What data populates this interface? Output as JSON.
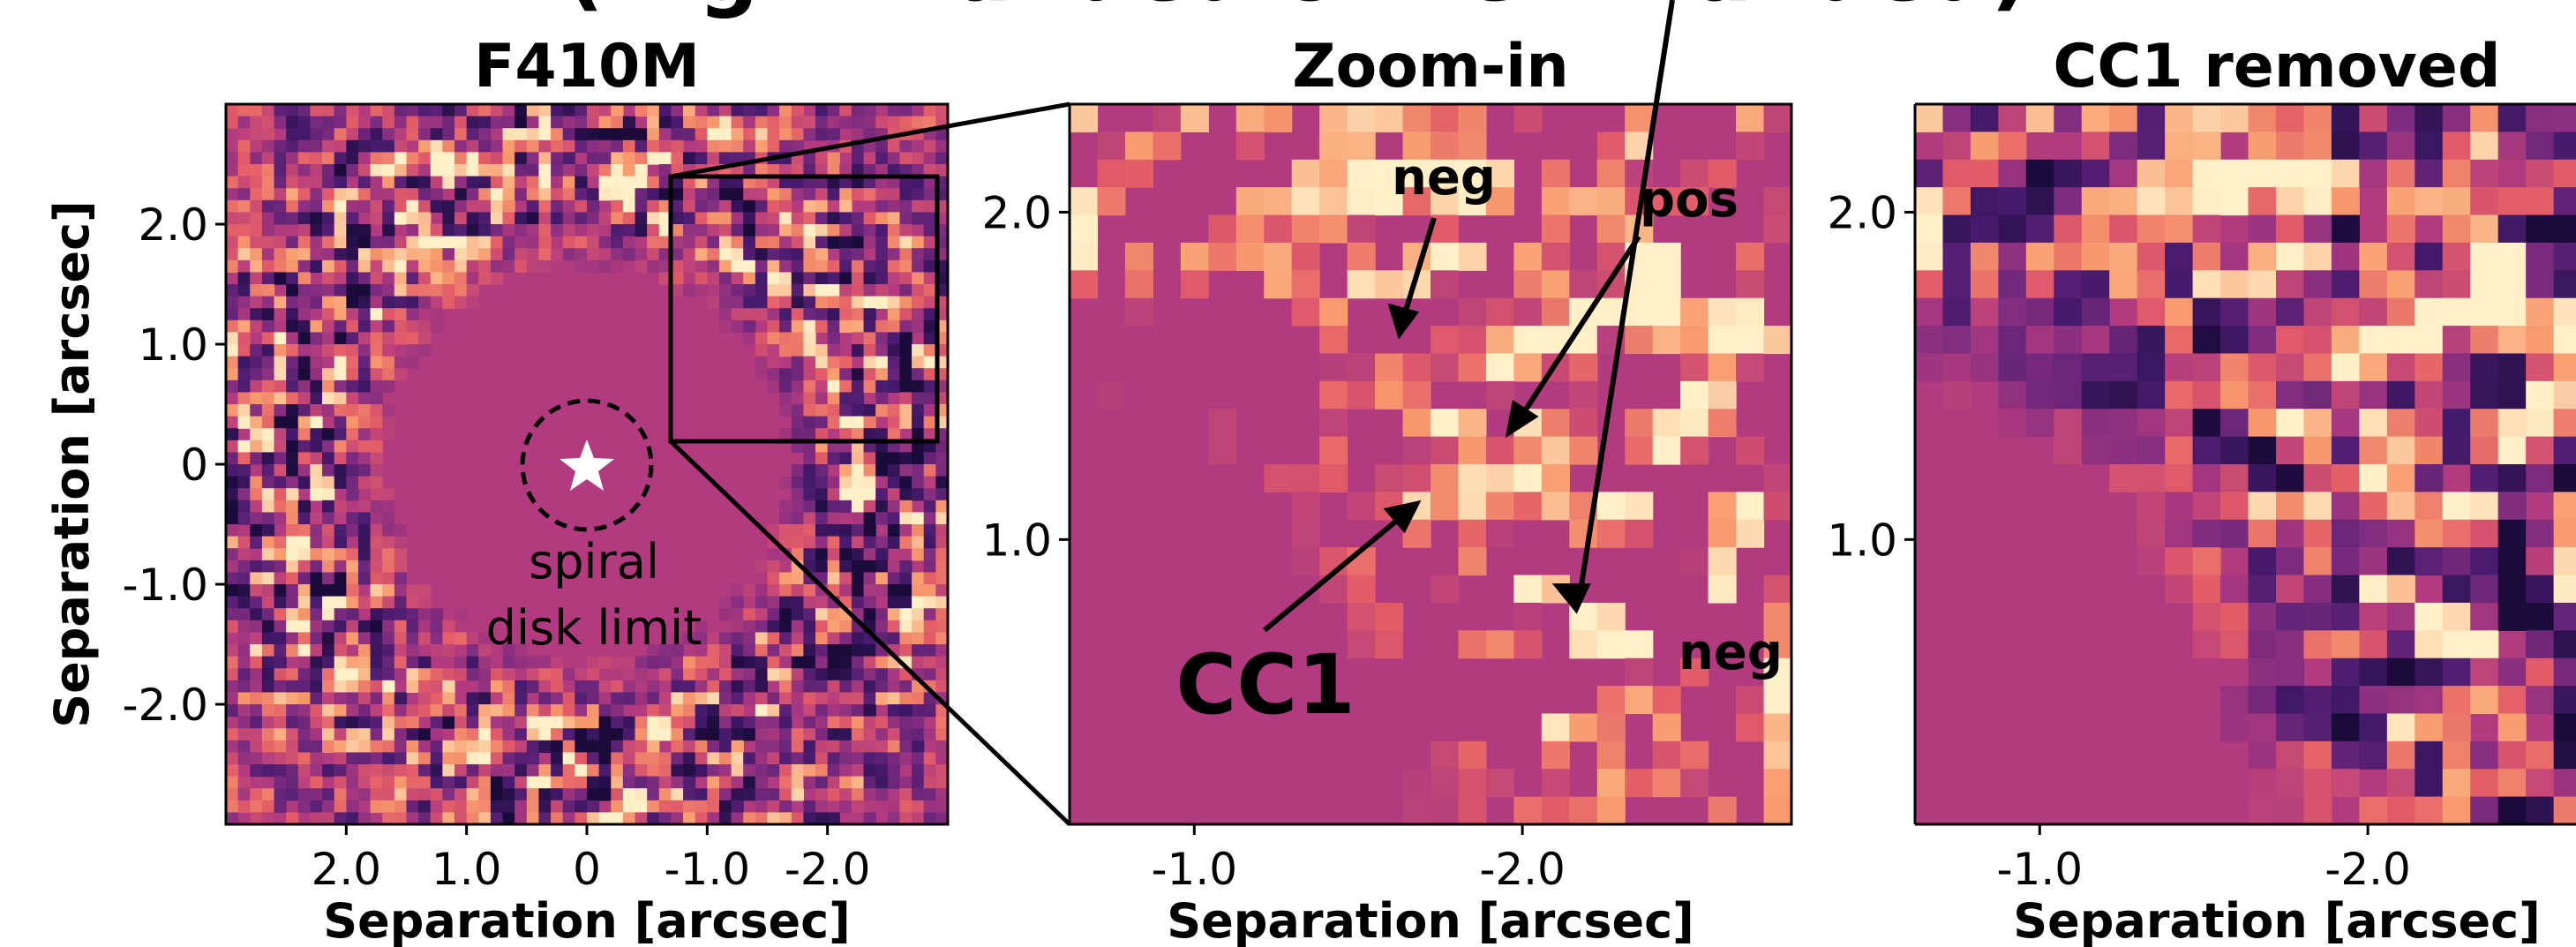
{
  "figure_title_partial": "(Right-handed or Left-handed)",
  "chart_data": [
    {
      "type": "heatmap",
      "title": "F410M",
      "xlabel": "Separation [arcsec]",
      "ylabel": "Separation [arcsec]",
      "x_ticks": [
        "2.0",
        "1.0",
        "0",
        "-1.0",
        "-2.0"
      ],
      "x_tick_values": [
        2.0,
        1.0,
        0,
        -1.0,
        -2.0
      ],
      "y_ticks": [
        "2.0",
        "1.0",
        "0",
        "-1.0",
        "-2.0"
      ],
      "y_tick_values": [
        2.0,
        1.0,
        0,
        -1.0,
        -2.0
      ],
      "xlim": [
        3.0,
        -3.0
      ],
      "ylim": [
        -3.0,
        3.0
      ],
      "x_inverted": true,
      "star_marker": "star-icon",
      "circle_radius": 0.55,
      "annotation": "spiral\ndisk limit",
      "annotation_lines": [
        "spiral",
        "disk limit"
      ],
      "zoom_box": {
        "x": [
          -0.65,
          -2.9
        ],
        "y": [
          0.15,
          2.38
        ]
      },
      "colormap": "magma-like"
    },
    {
      "type": "heatmap",
      "title": "Zoom-in",
      "xlabel": "Separation [arcsec]",
      "ylabel": "",
      "x_ticks": [
        "-1.0",
        "-2.0"
      ],
      "x_tick_values": [
        -1.0,
        -2.0
      ],
      "y_ticks": [
        "2.0",
        "1.0"
      ],
      "y_tick_values": [
        2.0,
        1.0
      ],
      "xlim": [
        -0.62,
        -2.82
      ],
      "ylim": [
        0.13,
        2.33
      ],
      "annotations": [
        {
          "text": "neg",
          "kind": "neg",
          "xy": [
            -1.65,
            1.62
          ]
        },
        {
          "text": "pos",
          "kind": "pos",
          "xy": [
            -1.95,
            1.35
          ]
        },
        {
          "text": "CC1",
          "kind": "cc1",
          "xy": [
            -1.68,
            1.1
          ]
        },
        {
          "text": "neg",
          "kind": "neg",
          "xy": [
            -2.13,
            0.86
          ]
        }
      ],
      "colormap": "magma-like"
    },
    {
      "type": "heatmap",
      "title": "CC1 removed",
      "xlabel": "Separation [arcsec]",
      "ylabel": "",
      "x_ticks": [
        "-1.0",
        "-2.0"
      ],
      "x_tick_values": [
        -1.0,
        -2.0
      ],
      "y_ticks": [
        "2.0",
        "1.0"
      ],
      "y_tick_values": [
        2.0,
        1.0
      ],
      "xlim": [
        -0.62,
        -2.82
      ],
      "ylim": [
        0.13,
        2.33
      ],
      "colormap": "magma-like"
    }
  ],
  "colors": {
    "background_field": "#b13b7e",
    "dark_lobe": "#1a0b3a",
    "mid_dark": "#5b2a7a",
    "bright": "#f9a070",
    "brightest": "#fff2c8",
    "frame": "#000000",
    "star": "#ffffff"
  }
}
